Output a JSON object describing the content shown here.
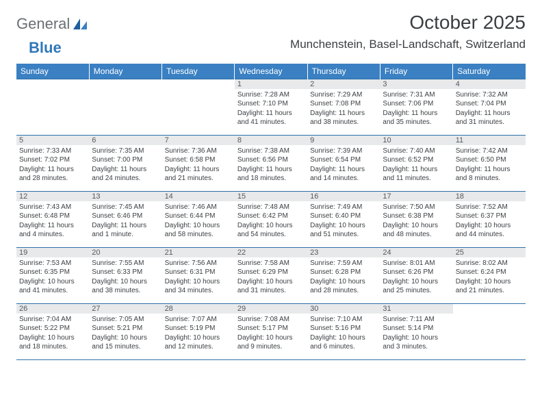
{
  "logo": {
    "text1": "General",
    "text2": "Blue",
    "brand_color": "#2f78b9",
    "text_color": "#6a6f73"
  },
  "header": {
    "title": "October 2025",
    "location": "Munchenstein, Basel-Landschaft, Switzerland",
    "title_fontsize": 28,
    "location_fontsize": 17,
    "text_color": "#3a3e42"
  },
  "calendar": {
    "header_bg": "#3a80c2",
    "header_fg": "#ffffff",
    "rule_color": "#2f6fa8",
    "daynum_bg": "#e7e9eb",
    "daynum_fg": "#55595d",
    "cell_font_size": 10,
    "day_headers": [
      "Sunday",
      "Monday",
      "Tuesday",
      "Wednesday",
      "Thursday",
      "Friday",
      "Saturday"
    ],
    "weeks": [
      [
        {
          "n": "",
          "sunrise": "",
          "sunset": "",
          "daylight": ""
        },
        {
          "n": "",
          "sunrise": "",
          "sunset": "",
          "daylight": ""
        },
        {
          "n": "",
          "sunrise": "",
          "sunset": "",
          "daylight": ""
        },
        {
          "n": "1",
          "sunrise": "Sunrise: 7:28 AM",
          "sunset": "Sunset: 7:10 PM",
          "daylight": "Daylight: 11 hours and 41 minutes."
        },
        {
          "n": "2",
          "sunrise": "Sunrise: 7:29 AM",
          "sunset": "Sunset: 7:08 PM",
          "daylight": "Daylight: 11 hours and 38 minutes."
        },
        {
          "n": "3",
          "sunrise": "Sunrise: 7:31 AM",
          "sunset": "Sunset: 7:06 PM",
          "daylight": "Daylight: 11 hours and 35 minutes."
        },
        {
          "n": "4",
          "sunrise": "Sunrise: 7:32 AM",
          "sunset": "Sunset: 7:04 PM",
          "daylight": "Daylight: 11 hours and 31 minutes."
        }
      ],
      [
        {
          "n": "5",
          "sunrise": "Sunrise: 7:33 AM",
          "sunset": "Sunset: 7:02 PM",
          "daylight": "Daylight: 11 hours and 28 minutes."
        },
        {
          "n": "6",
          "sunrise": "Sunrise: 7:35 AM",
          "sunset": "Sunset: 7:00 PM",
          "daylight": "Daylight: 11 hours and 24 minutes."
        },
        {
          "n": "7",
          "sunrise": "Sunrise: 7:36 AM",
          "sunset": "Sunset: 6:58 PM",
          "daylight": "Daylight: 11 hours and 21 minutes."
        },
        {
          "n": "8",
          "sunrise": "Sunrise: 7:38 AM",
          "sunset": "Sunset: 6:56 PM",
          "daylight": "Daylight: 11 hours and 18 minutes."
        },
        {
          "n": "9",
          "sunrise": "Sunrise: 7:39 AM",
          "sunset": "Sunset: 6:54 PM",
          "daylight": "Daylight: 11 hours and 14 minutes."
        },
        {
          "n": "10",
          "sunrise": "Sunrise: 7:40 AM",
          "sunset": "Sunset: 6:52 PM",
          "daylight": "Daylight: 11 hours and 11 minutes."
        },
        {
          "n": "11",
          "sunrise": "Sunrise: 7:42 AM",
          "sunset": "Sunset: 6:50 PM",
          "daylight": "Daylight: 11 hours and 8 minutes."
        }
      ],
      [
        {
          "n": "12",
          "sunrise": "Sunrise: 7:43 AM",
          "sunset": "Sunset: 6:48 PM",
          "daylight": "Daylight: 11 hours and 4 minutes."
        },
        {
          "n": "13",
          "sunrise": "Sunrise: 7:45 AM",
          "sunset": "Sunset: 6:46 PM",
          "daylight": "Daylight: 11 hours and 1 minute."
        },
        {
          "n": "14",
          "sunrise": "Sunrise: 7:46 AM",
          "sunset": "Sunset: 6:44 PM",
          "daylight": "Daylight: 10 hours and 58 minutes."
        },
        {
          "n": "15",
          "sunrise": "Sunrise: 7:48 AM",
          "sunset": "Sunset: 6:42 PM",
          "daylight": "Daylight: 10 hours and 54 minutes."
        },
        {
          "n": "16",
          "sunrise": "Sunrise: 7:49 AM",
          "sunset": "Sunset: 6:40 PM",
          "daylight": "Daylight: 10 hours and 51 minutes."
        },
        {
          "n": "17",
          "sunrise": "Sunrise: 7:50 AM",
          "sunset": "Sunset: 6:38 PM",
          "daylight": "Daylight: 10 hours and 48 minutes."
        },
        {
          "n": "18",
          "sunrise": "Sunrise: 7:52 AM",
          "sunset": "Sunset: 6:37 PM",
          "daylight": "Daylight: 10 hours and 44 minutes."
        }
      ],
      [
        {
          "n": "19",
          "sunrise": "Sunrise: 7:53 AM",
          "sunset": "Sunset: 6:35 PM",
          "daylight": "Daylight: 10 hours and 41 minutes."
        },
        {
          "n": "20",
          "sunrise": "Sunrise: 7:55 AM",
          "sunset": "Sunset: 6:33 PM",
          "daylight": "Daylight: 10 hours and 38 minutes."
        },
        {
          "n": "21",
          "sunrise": "Sunrise: 7:56 AM",
          "sunset": "Sunset: 6:31 PM",
          "daylight": "Daylight: 10 hours and 34 minutes."
        },
        {
          "n": "22",
          "sunrise": "Sunrise: 7:58 AM",
          "sunset": "Sunset: 6:29 PM",
          "daylight": "Daylight: 10 hours and 31 minutes."
        },
        {
          "n": "23",
          "sunrise": "Sunrise: 7:59 AM",
          "sunset": "Sunset: 6:28 PM",
          "daylight": "Daylight: 10 hours and 28 minutes."
        },
        {
          "n": "24",
          "sunrise": "Sunrise: 8:01 AM",
          "sunset": "Sunset: 6:26 PM",
          "daylight": "Daylight: 10 hours and 25 minutes."
        },
        {
          "n": "25",
          "sunrise": "Sunrise: 8:02 AM",
          "sunset": "Sunset: 6:24 PM",
          "daylight": "Daylight: 10 hours and 21 minutes."
        }
      ],
      [
        {
          "n": "26",
          "sunrise": "Sunrise: 7:04 AM",
          "sunset": "Sunset: 5:22 PM",
          "daylight": "Daylight: 10 hours and 18 minutes."
        },
        {
          "n": "27",
          "sunrise": "Sunrise: 7:05 AM",
          "sunset": "Sunset: 5:21 PM",
          "daylight": "Daylight: 10 hours and 15 minutes."
        },
        {
          "n": "28",
          "sunrise": "Sunrise: 7:07 AM",
          "sunset": "Sunset: 5:19 PM",
          "daylight": "Daylight: 10 hours and 12 minutes."
        },
        {
          "n": "29",
          "sunrise": "Sunrise: 7:08 AM",
          "sunset": "Sunset: 5:17 PM",
          "daylight": "Daylight: 10 hours and 9 minutes."
        },
        {
          "n": "30",
          "sunrise": "Sunrise: 7:10 AM",
          "sunset": "Sunset: 5:16 PM",
          "daylight": "Daylight: 10 hours and 6 minutes."
        },
        {
          "n": "31",
          "sunrise": "Sunrise: 7:11 AM",
          "sunset": "Sunset: 5:14 PM",
          "daylight": "Daylight: 10 hours and 3 minutes."
        },
        {
          "n": "",
          "sunrise": "",
          "sunset": "",
          "daylight": ""
        }
      ]
    ]
  }
}
